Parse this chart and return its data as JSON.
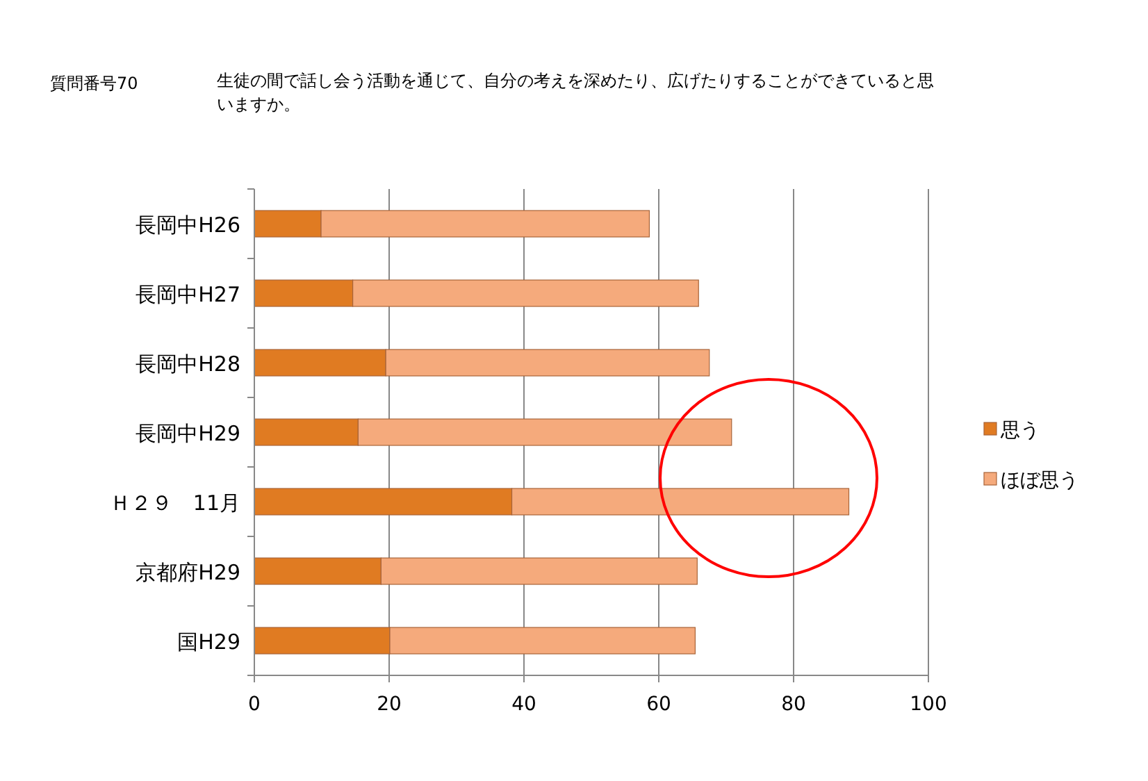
{
  "chart_data": {
    "type": "bar",
    "orientation": "horizontal",
    "stacked": true,
    "title": "質問番号70",
    "subtitle": "生徒の間で話し会う活動を通じて、自分の考えを深めたり、広げたりすることができていると思いますか。",
    "categories": [
      "長岡中H26",
      "長岡中H27",
      "長岡中H28",
      "長岡中H29",
      "Ｈ２９　11月",
      "京都府H29",
      "国H29"
    ],
    "series": [
      {
        "name": "思う",
        "color": "#e07b22",
        "values": [
          9.9,
          14.6,
          19.5,
          15.4,
          38.2,
          18.8,
          20.1
        ]
      },
      {
        "name": "ほぼ思う",
        "color": "#f5aa7c",
        "values": [
          48.7,
          51.3,
          48,
          55.4,
          50,
          46.9,
          45.3
        ]
      }
    ],
    "xlim": [
      0,
      100
    ],
    "xticks": [
      0,
      20,
      40,
      60,
      80,
      100
    ],
    "grid": "x",
    "legend": "right"
  }
}
